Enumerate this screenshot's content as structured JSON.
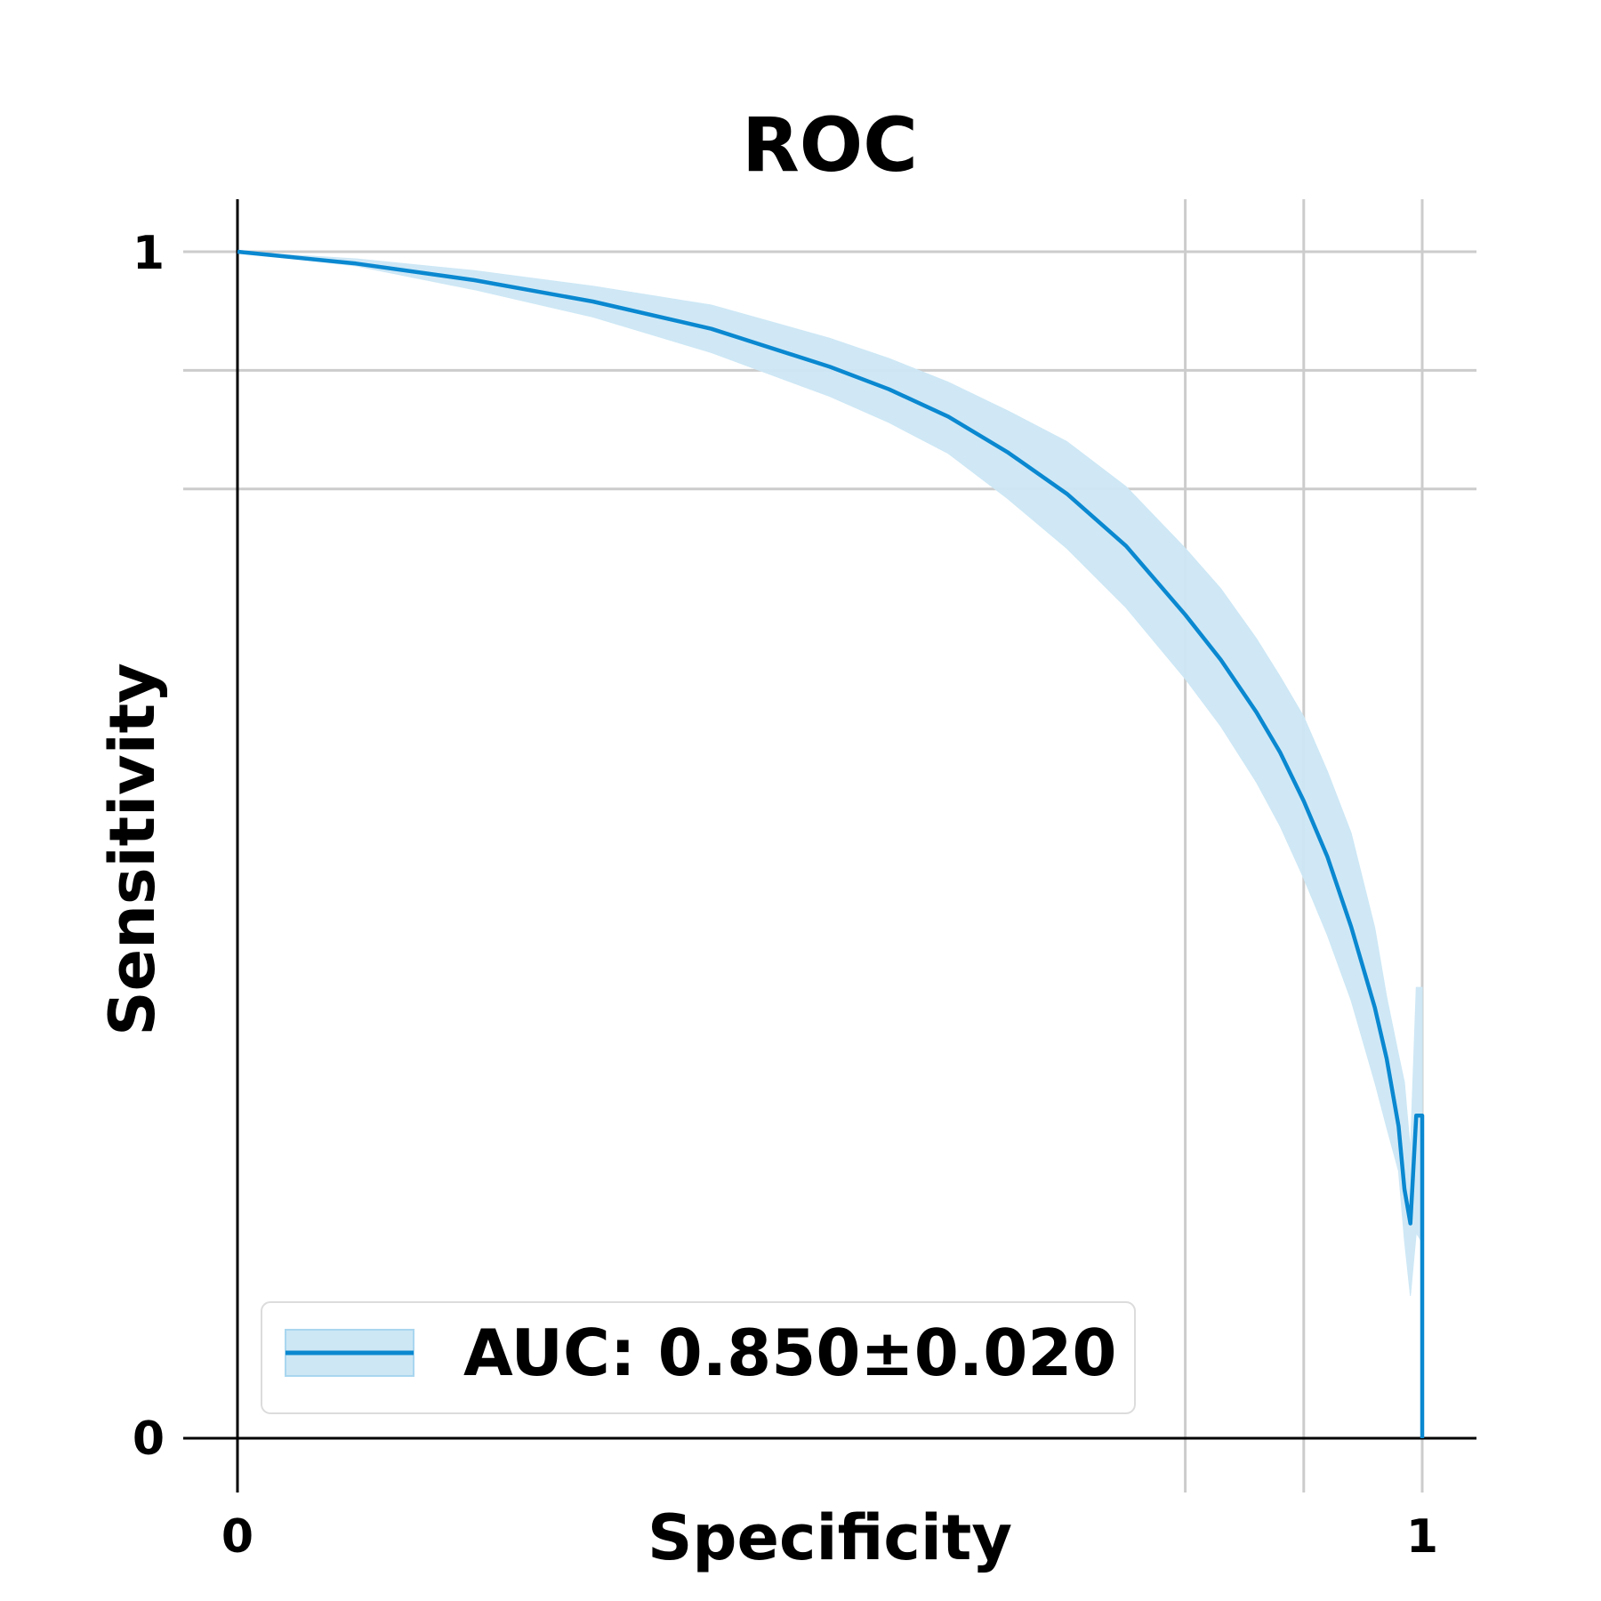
{
  "chart_data": {
    "type": "line",
    "title": "ROC",
    "xlabel": "Specificity",
    "ylabel": "Sensitivity",
    "xlim": [
      0,
      1
    ],
    "ylim": [
      0,
      1
    ],
    "x_tick_labels": [
      "0",
      "1"
    ],
    "y_tick_labels": [
      "0",
      "1"
    ],
    "x_gridlines": [
      0.8,
      0.9,
      1.0
    ],
    "y_gridlines": [
      0.8,
      0.9,
      1.0
    ],
    "grid": true,
    "legend_position": "lower-left",
    "series": [
      {
        "name": "AUC: 0.850±0.020",
        "color": "#0a88d0",
        "band_color": "#cde7f5",
        "x": [
          0.0,
          0.1,
          0.2,
          0.3,
          0.4,
          0.5,
          0.55,
          0.6,
          0.65,
          0.7,
          0.75,
          0.8,
          0.83,
          0.86,
          0.88,
          0.9,
          0.92,
          0.94,
          0.96,
          0.97,
          0.98,
          0.985,
          0.99,
          0.995,
          1.0,
          1.0
        ],
        "y": [
          1.0,
          0.99,
          0.976,
          0.958,
          0.935,
          0.903,
          0.884,
          0.861,
          0.831,
          0.796,
          0.752,
          0.694,
          0.656,
          0.612,
          0.578,
          0.537,
          0.49,
          0.431,
          0.363,
          0.32,
          0.263,
          0.21,
          0.181,
          0.272,
          0.272,
          0.0
        ],
        "y_lower": [
          1.0,
          0.988,
          0.968,
          0.945,
          0.915,
          0.878,
          0.856,
          0.83,
          0.792,
          0.75,
          0.7,
          0.64,
          0.6,
          0.553,
          0.516,
          0.472,
          0.424,
          0.369,
          0.3,
          0.262,
          0.225,
          0.167,
          0.12,
          0.173,
          0.165,
          0.165
        ],
        "y_upper": [
          1.0,
          0.994,
          0.984,
          0.971,
          0.955,
          0.927,
          0.91,
          0.89,
          0.866,
          0.84,
          0.802,
          0.75,
          0.716,
          0.674,
          0.642,
          0.608,
          0.562,
          0.51,
          0.43,
          0.372,
          0.323,
          0.3,
          0.242,
          0.38,
          0.38,
          0.38
        ]
      }
    ]
  }
}
